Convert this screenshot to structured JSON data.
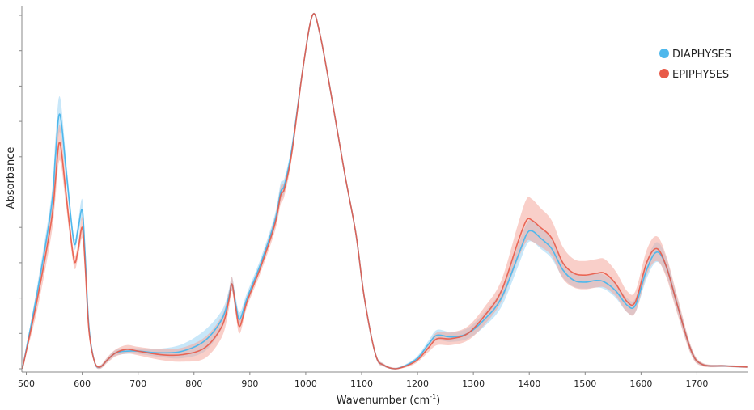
{
  "chart_data": {
    "type": "line",
    "title": "",
    "xlabel": "Wavenumber (cm",
    "xlabel_sup": "-1",
    "xlabel_close": ")",
    "ylabel": "Absorbance",
    "xlim": [
      492,
      1792
    ],
    "ylim": [
      0,
      1
    ],
    "x_ticks": [
      500,
      600,
      700,
      800,
      900,
      1000,
      1100,
      1200,
      1300,
      1400,
      1500,
      1600,
      1700
    ],
    "y_tick_labels_shown": false,
    "grid": false,
    "legend_position": "top-right",
    "series": [
      {
        "name": "DIAPHYSES",
        "color": "#4fb8ec",
        "band_color": "#9ad4f4",
        "x": [
          493,
          520,
          545,
          552,
          560,
          572,
          585,
          592,
          600,
          605,
          612,
          622,
          632,
          645,
          660,
          680,
          700,
          740,
          780,
          820,
          850,
          862,
          868,
          875,
          882,
          895,
          920,
          945,
          955,
          962,
          975,
          995,
          1012,
          1025,
          1045,
          1070,
          1090,
          1105,
          1125,
          1140,
          1160,
          1180,
          1200,
          1220,
          1235,
          1260,
          1290,
          1320,
          1350,
          1380,
          1395,
          1405,
          1420,
          1440,
          1460,
          1480,
          1500,
          1520,
          1535,
          1555,
          1575,
          1590,
          1610,
          1628,
          1645,
          1665,
          1690,
          1710,
          1750,
          1790
        ],
        "y": [
          0.0,
          0.22,
          0.46,
          0.6,
          0.72,
          0.55,
          0.36,
          0.39,
          0.45,
          0.33,
          0.12,
          0.02,
          0.005,
          0.025,
          0.045,
          0.05,
          0.05,
          0.045,
          0.05,
          0.08,
          0.14,
          0.2,
          0.24,
          0.18,
          0.14,
          0.2,
          0.3,
          0.42,
          0.5,
          0.52,
          0.62,
          0.85,
          1.0,
          0.95,
          0.78,
          0.55,
          0.38,
          0.2,
          0.04,
          0.01,
          0.0,
          0.01,
          0.03,
          0.07,
          0.095,
          0.09,
          0.1,
          0.14,
          0.2,
          0.32,
          0.38,
          0.39,
          0.37,
          0.34,
          0.28,
          0.25,
          0.245,
          0.25,
          0.245,
          0.22,
          0.18,
          0.18,
          0.28,
          0.33,
          0.29,
          0.18,
          0.05,
          0.012,
          0.008,
          0.005
        ],
        "band": [
          0.0,
          0.02,
          0.03,
          0.05,
          0.05,
          0.03,
          0.015,
          0.02,
          0.03,
          0.02,
          0.01,
          0.005,
          0.005,
          0.006,
          0.008,
          0.008,
          0.008,
          0.012,
          0.02,
          0.03,
          0.025,
          0.02,
          0.02,
          0.02,
          0.02,
          0.015,
          0.015,
          0.018,
          0.025,
          0.02,
          0.015,
          0.008,
          0.003,
          0.004,
          0.005,
          0.006,
          0.006,
          0.006,
          0.006,
          0.004,
          0.003,
          0.004,
          0.006,
          0.01,
          0.015,
          0.014,
          0.015,
          0.02,
          0.025,
          0.03,
          0.03,
          0.03,
          0.03,
          0.028,
          0.022,
          0.018,
          0.018,
          0.02,
          0.02,
          0.02,
          0.02,
          0.02,
          0.025,
          0.028,
          0.025,
          0.02,
          0.01,
          0.004,
          0.003,
          0.003
        ]
      },
      {
        "name": "EPIPHYSES",
        "color": "#e85a48",
        "band_color": "#f4a79c",
        "x": [
          493,
          520,
          545,
          552,
          560,
          572,
          585,
          592,
          600,
          605,
          612,
          622,
          632,
          645,
          660,
          680,
          700,
          740,
          780,
          820,
          850,
          862,
          868,
          875,
          882,
          895,
          920,
          945,
          955,
          962,
          975,
          995,
          1012,
          1025,
          1045,
          1070,
          1090,
          1105,
          1125,
          1140,
          1160,
          1180,
          1200,
          1220,
          1235,
          1260,
          1290,
          1320,
          1350,
          1380,
          1395,
          1405,
          1420,
          1440,
          1460,
          1480,
          1500,
          1520,
          1535,
          1555,
          1575,
          1590,
          1610,
          1628,
          1645,
          1665,
          1690,
          1710,
          1750,
          1790
        ],
        "y": [
          0.0,
          0.2,
          0.42,
          0.53,
          0.64,
          0.48,
          0.31,
          0.33,
          0.4,
          0.3,
          0.11,
          0.02,
          0.005,
          0.025,
          0.045,
          0.055,
          0.05,
          0.04,
          0.04,
          0.06,
          0.12,
          0.19,
          0.24,
          0.17,
          0.12,
          0.19,
          0.29,
          0.41,
          0.49,
          0.51,
          0.61,
          0.85,
          1.0,
          0.95,
          0.78,
          0.55,
          0.38,
          0.2,
          0.04,
          0.01,
          0.0,
          0.008,
          0.025,
          0.06,
          0.085,
          0.085,
          0.1,
          0.15,
          0.22,
          0.36,
          0.42,
          0.42,
          0.4,
          0.37,
          0.3,
          0.27,
          0.265,
          0.27,
          0.27,
          0.24,
          0.19,
          0.19,
          0.3,
          0.34,
          0.29,
          0.18,
          0.05,
          0.012,
          0.008,
          0.005
        ],
        "band": [
          0.0,
          0.03,
          0.04,
          0.05,
          0.05,
          0.03,
          0.02,
          0.02,
          0.03,
          0.02,
          0.01,
          0.005,
          0.005,
          0.008,
          0.01,
          0.012,
          0.012,
          0.015,
          0.02,
          0.03,
          0.03,
          0.025,
          0.02,
          0.02,
          0.02,
          0.015,
          0.015,
          0.02,
          0.025,
          0.02,
          0.015,
          0.008,
          0.003,
          0.004,
          0.005,
          0.006,
          0.006,
          0.006,
          0.006,
          0.004,
          0.003,
          0.004,
          0.006,
          0.012,
          0.018,
          0.018,
          0.02,
          0.025,
          0.03,
          0.05,
          0.06,
          0.06,
          0.055,
          0.05,
          0.045,
          0.04,
          0.04,
          0.04,
          0.04,
          0.035,
          0.03,
          0.03,
          0.035,
          0.035,
          0.03,
          0.025,
          0.012,
          0.005,
          0.003,
          0.003
        ]
      }
    ]
  }
}
